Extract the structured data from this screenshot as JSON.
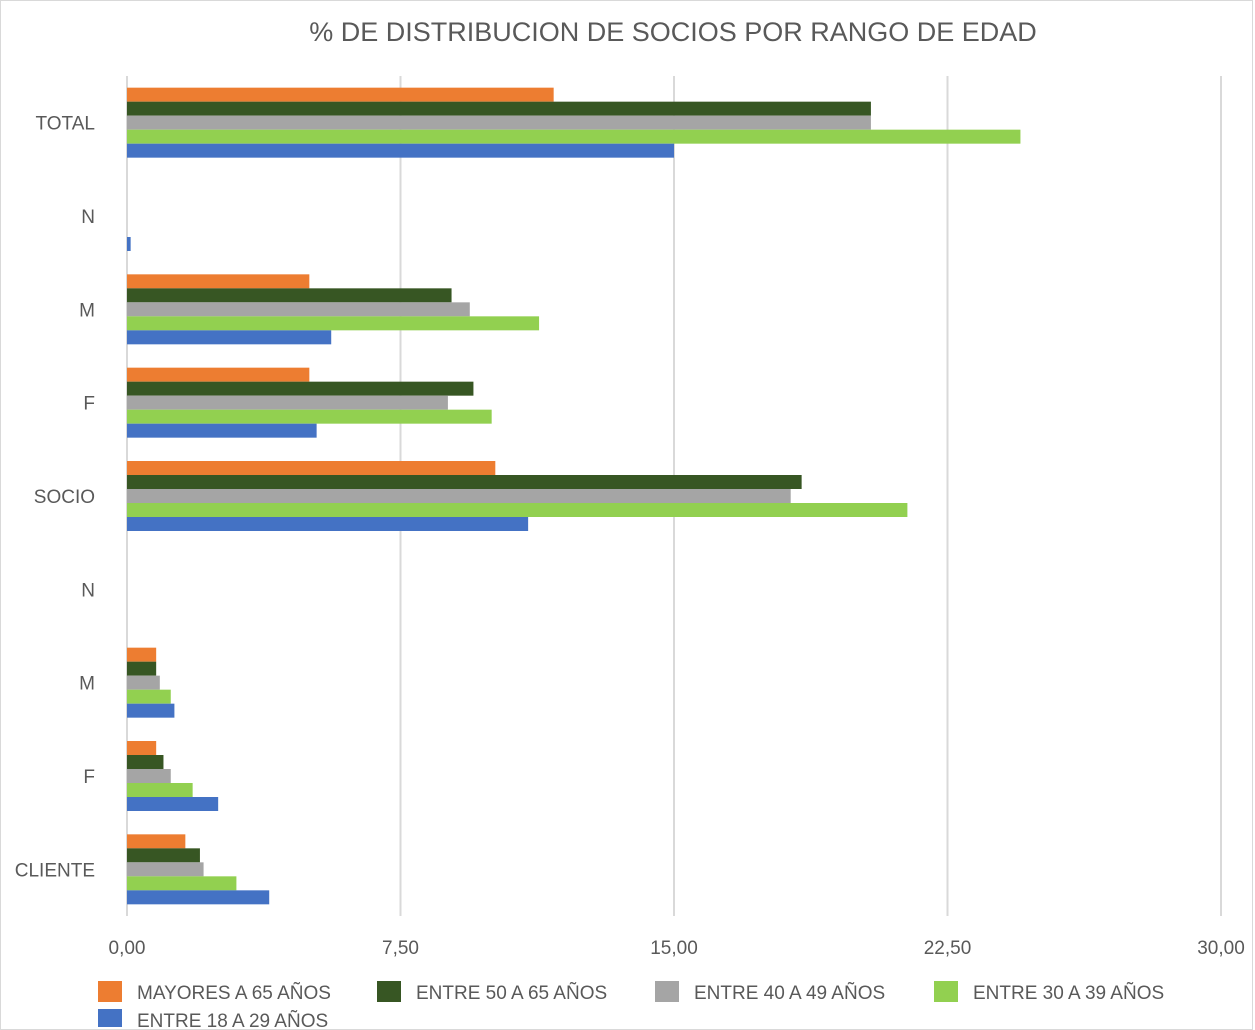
{
  "chart_data": {
    "type": "bar",
    "orientation": "horizontal",
    "title": "% DE DISTRIBUCION DE SOCIOS POR RANGO DE EDAD",
    "xlabel": "",
    "ylabel": "",
    "xlim": [
      0,
      30
    ],
    "x_ticks": [
      "0,00",
      "7,50",
      "15,00",
      "22,50",
      "30,00"
    ],
    "x_tick_values": [
      0,
      7.5,
      15,
      22.5,
      30
    ],
    "grid": true,
    "legend_position": "bottom",
    "categories": [
      "TOTAL",
      "N",
      "M",
      "F",
      "SOCIO",
      "N",
      "M",
      "F",
      "CLIENTE"
    ],
    "series": [
      {
        "name": "MAYORES A 65 AÑOS",
        "color": "#ed7d31",
        "values": [
          11.7,
          0,
          5.0,
          5.0,
          10.1,
          0,
          0.8,
          0.8,
          1.6
        ]
      },
      {
        "name": "ENTRE 50 A 65 AÑOS",
        "color": "#375623",
        "values": [
          20.4,
          0,
          8.9,
          9.5,
          18.5,
          0,
          0.8,
          1.0,
          2.0
        ]
      },
      {
        "name": "ENTRE 40 A 49 AÑOS",
        "color": "#a5a5a5",
        "values": [
          20.4,
          0,
          9.4,
          8.8,
          18.2,
          0,
          0.9,
          1.2,
          2.1
        ]
      },
      {
        "name": "ENTRE 30 A 39 AÑOS",
        "color": "#92d050",
        "values": [
          24.5,
          0,
          11.3,
          10.0,
          21.4,
          0,
          1.2,
          1.8,
          3.0
        ]
      },
      {
        "name": "ENTRE 18 A 29 AÑOS",
        "color": "#4472c4",
        "values": [
          15.0,
          0.1,
          5.6,
          5.2,
          11.0,
          0,
          1.3,
          2.5,
          3.9
        ]
      }
    ]
  }
}
